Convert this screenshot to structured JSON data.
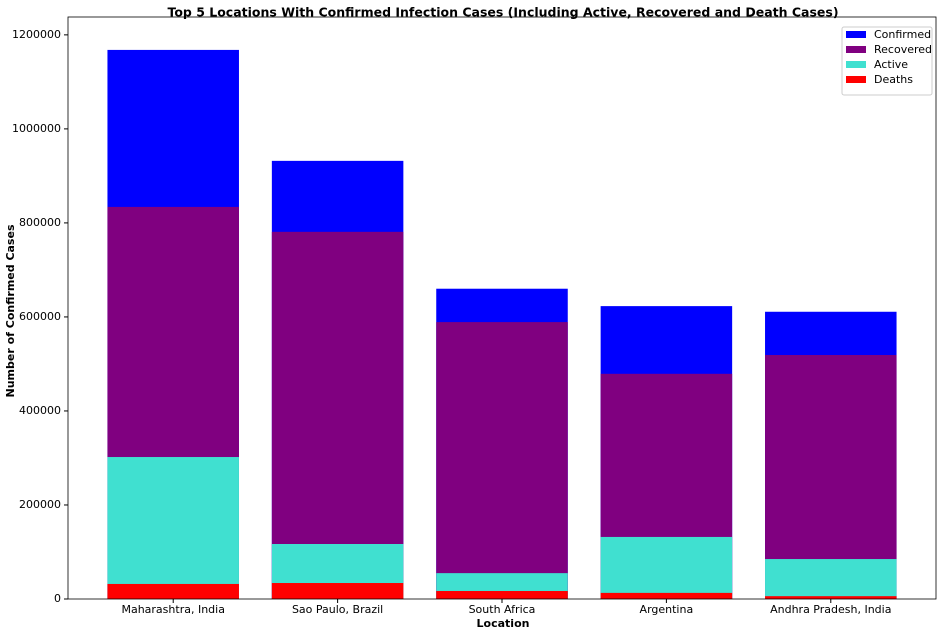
{
  "chart_data": {
    "type": "bar",
    "title": "Top 5 Locations With Confirmed Infection Cases (Including Active, Recovered and Death Cases)",
    "x_label": "Location",
    "y_label": "Number of Confirmed Cases",
    "categories": [
      "Maharashtra, India",
      "Sao Paulo, Brazil",
      "South Africa",
      "Argentina",
      "Andhra Pradesh, India"
    ],
    "series": [
      {
        "name": "Confirmed",
        "color": "#0000ff",
        "values": [
          1168000,
          932000,
          660000,
          623000,
          611000
        ]
      },
      {
        "name": "Recovered",
        "color": "#800080",
        "values": [
          834000,
          781000,
          589000,
          479000,
          519000
        ]
      },
      {
        "name": "Active",
        "color": "#40e0d0",
        "values": [
          302000,
          117000,
          55000,
          132000,
          85000
        ]
      },
      {
        "name": "Deaths",
        "color": "#ff0000",
        "values": [
          32000,
          34000,
          17000,
          13000,
          6000
        ]
      }
    ],
    "ylim": [
      0,
      1238000
    ],
    "yticks": [
      0,
      200000,
      400000,
      600000,
      800000,
      1000000,
      1200000
    ],
    "legend": "upper right"
  }
}
